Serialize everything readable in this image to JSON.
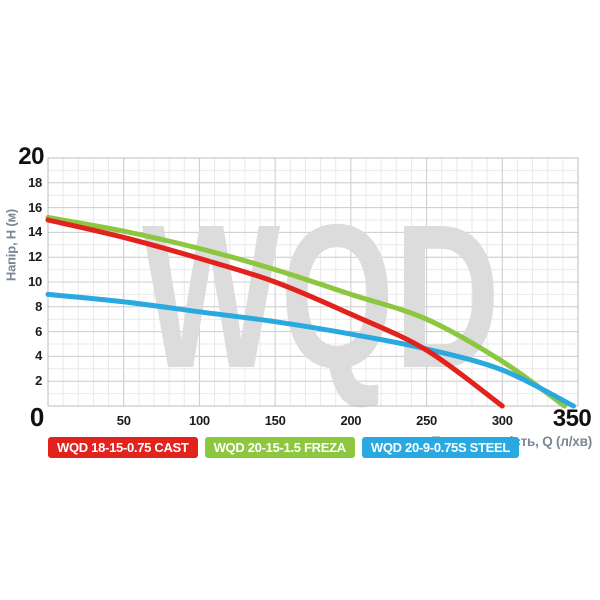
{
  "page": {
    "background": "#ffffff"
  },
  "chart_data": {
    "type": "line",
    "watermark": "WQD",
    "xlabel": "Продуктивність, Q (л/хв)",
    "ylabel": "Напір, H (м)",
    "xlim": [
      0,
      350
    ],
    "ylim": [
      0,
      20
    ],
    "x_ticks": [
      50,
      100,
      150,
      200,
      250,
      300
    ],
    "x_max_label": "350",
    "y_ticks": [
      2,
      4,
      6,
      8,
      10,
      12,
      14,
      16,
      18
    ],
    "y_max_label": "20",
    "origin_label": "0",
    "x_minor_step": 10,
    "y_minor_step": 1,
    "x_major_step": 50,
    "y_major_step": 2,
    "grid": true,
    "legend_position": "bottom-left",
    "series": [
      {
        "name": "WQD 18-15-0.75 CAST",
        "color": "#e2231d",
        "points": [
          [
            0,
            15.0
          ],
          [
            50,
            13.6
          ],
          [
            100,
            11.9
          ],
          [
            150,
            10.0
          ],
          [
            200,
            7.4
          ],
          [
            250,
            4.5
          ],
          [
            300,
            0
          ]
        ]
      },
      {
        "name": "WQD 20-15-1.5 FREZA",
        "color": "#8dc63f",
        "points": [
          [
            0,
            15.2
          ],
          [
            50,
            14.1
          ],
          [
            100,
            12.7
          ],
          [
            150,
            11.0
          ],
          [
            200,
            9.0
          ],
          [
            250,
            7.0
          ],
          [
            300,
            3.6
          ],
          [
            341,
            0
          ]
        ]
      },
      {
        "name": "WQD 20-9-0.75S STEEL",
        "color": "#29a9e0",
        "points": [
          [
            0,
            9.0
          ],
          [
            50,
            8.4
          ],
          [
            100,
            7.6
          ],
          [
            150,
            6.8
          ],
          [
            200,
            5.8
          ],
          [
            250,
            4.6
          ],
          [
            300,
            2.9
          ],
          [
            347,
            0
          ]
        ]
      }
    ],
    "style": {
      "curve_width": 5,
      "watermark_color": "#dcdcdc",
      "grid_minor_color": "#e9e9e9",
      "grid_major_color": "#cfcfcf",
      "border_color": "#bdbdbd",
      "tick_color": "#1c1c1c",
      "axis_title_color": "#7b8795",
      "legend_text_color": "#ffffff"
    }
  }
}
